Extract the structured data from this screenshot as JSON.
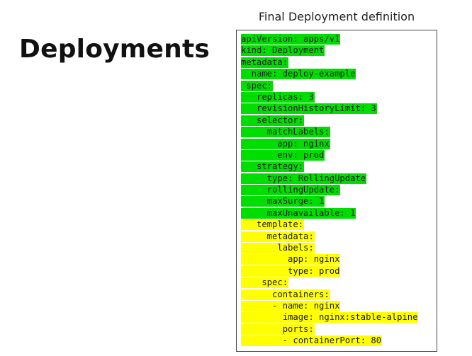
{
  "slide": {
    "title": "Deployments",
    "caption": "Final Deployment definition"
  },
  "colors": {
    "green_highlight": "#00dd00",
    "yellow_highlight": "#ffff00"
  },
  "code_lines": [
    {
      "text": "apiVersion: apps/v1",
      "indent": 0,
      "highlight": "green"
    },
    {
      "text": "kind: Deployment",
      "indent": 0,
      "highlight": "green"
    },
    {
      "text": "metadata:",
      "indent": 0,
      "highlight": "green"
    },
    {
      "text": "name: deploy-example",
      "indent": 2,
      "highlight": "green"
    },
    {
      "text": "spec:",
      "indent": 1,
      "highlight": "green"
    },
    {
      "text": "replicas: 3",
      "indent": 3,
      "highlight": "green"
    },
    {
      "text": "revisionHistoryLimit: 3",
      "indent": 3,
      "highlight": "green"
    },
    {
      "text": "selector:",
      "indent": 3,
      "highlight": "green"
    },
    {
      "text": "matchLabels:",
      "indent": 5,
      "highlight": "green"
    },
    {
      "text": "app: nginx",
      "indent": 7,
      "highlight": "green"
    },
    {
      "text": "env: prod",
      "indent": 7,
      "highlight": "green"
    },
    {
      "text": "strategy:",
      "indent": 3,
      "highlight": "green"
    },
    {
      "text": "type: RollingUpdate",
      "indent": 5,
      "highlight": "green"
    },
    {
      "text": "rollingUpdate:",
      "indent": 5,
      "highlight": "green"
    },
    {
      "text": "maxSurge: 1",
      "indent": 5,
      "highlight": "green"
    },
    {
      "text": "maxUnavailable: 1",
      "indent": 5,
      "highlight": "green"
    },
    {
      "text": "template:",
      "indent": 3,
      "highlight": "yellow"
    },
    {
      "text": "metadata:",
      "indent": 5,
      "highlight": "yellow"
    },
    {
      "text": "labels:",
      "indent": 7,
      "highlight": "yellow"
    },
    {
      "text": "app: nginx",
      "indent": 9,
      "highlight": "yellow"
    },
    {
      "text": "type: prod",
      "indent": 9,
      "highlight": "yellow"
    },
    {
      "text": "spec:",
      "indent": 4,
      "highlight": "yellow"
    },
    {
      "text": "containers:",
      "indent": 6,
      "highlight": "yellow"
    },
    {
      "text": "- name: nginx",
      "indent": 6,
      "highlight": "yellow"
    },
    {
      "text": "image: nginx:stable-alpine",
      "indent": 8,
      "highlight": "yellow"
    },
    {
      "text": "ports:",
      "indent": 8,
      "highlight": "yellow"
    },
    {
      "text": "- containerPort: 80",
      "indent": 8,
      "highlight": "yellow"
    }
  ]
}
